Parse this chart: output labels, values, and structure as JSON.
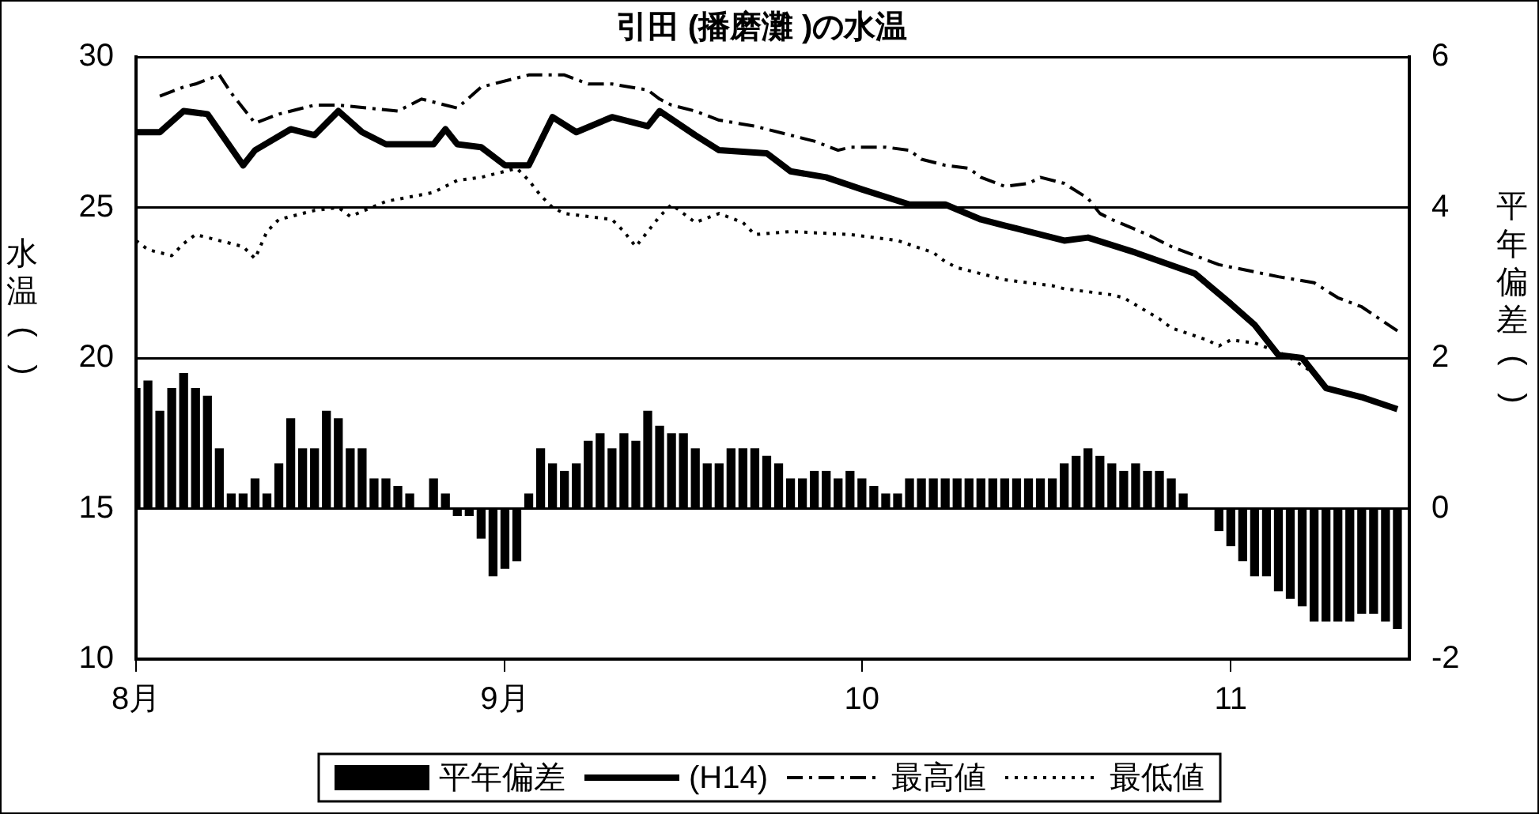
{
  "chart_data": {
    "type": "bar",
    "title": "引田 (播磨灘 )の水温",
    "ylabel": "水温()",
    "y2label": "平年偏差()",
    "x": [
      "--08-01",
      "--08-02",
      "--08-03",
      "--08-04",
      "--08-05",
      "--08-06",
      "--08-07",
      "--08-08",
      "--08-09",
      "--08-10",
      "--08-11",
      "--08-12",
      "--08-13",
      "--08-14",
      "--08-15",
      "--08-16",
      "--08-17",
      "--08-18",
      "--08-19",
      "--08-20",
      "--08-21",
      "--08-22",
      "--08-23",
      "--08-24",
      "--08-25",
      "--08-26",
      "--08-27",
      "--08-28",
      "--08-29",
      "--08-30",
      "--08-31",
      "--09-01",
      "--09-02",
      "--09-03",
      "--09-04",
      "--09-05",
      "--09-06",
      "--09-07",
      "--09-08",
      "--09-09",
      "--09-10",
      "--09-11",
      "--09-12",
      "--09-13",
      "--09-14",
      "--09-15",
      "--09-16",
      "--09-17",
      "--09-18",
      "--09-19",
      "--09-20",
      "--09-21",
      "--09-22",
      "--09-23",
      "--09-24",
      "--09-25",
      "--09-26",
      "--09-27",
      "--09-28",
      "--09-29",
      "--09-30",
      "--10-01",
      "--10-02",
      "--10-03",
      "--10-04",
      "--10-05",
      "--10-06",
      "--10-07",
      "--10-08",
      "--10-09",
      "--10-10",
      "--10-11",
      "--10-12",
      "--10-13",
      "--10-14",
      "--10-15",
      "--10-16",
      "--10-17",
      "--10-18",
      "--10-19",
      "--10-20",
      "--10-21",
      "--10-22",
      "--10-23",
      "--10-24",
      "--10-25",
      "--10-26",
      "--10-27",
      "--10-28",
      "--10-29",
      "--10-30",
      "--10-31",
      "--11-01",
      "--11-02",
      "--11-03",
      "--11-04",
      "--11-05",
      "--11-06",
      "--11-07",
      "--11-08",
      "--11-09",
      "--11-10",
      "--11-11",
      "--11-12",
      "--11-13",
      "--11-14",
      "--11-15"
    ],
    "series": [
      {
        "name": "平年偏差",
        "axis": "y2",
        "color": "#000000",
        "values": [
          1.6,
          1.7,
          1.3,
          1.6,
          1.8,
          1.6,
          1.5,
          0.8,
          0.2,
          0.2,
          0.4,
          0.2,
          0.6,
          1.2,
          0.8,
          0.8,
          1.3,
          1.2,
          0.8,
          0.8,
          0.4,
          0.4,
          0.3,
          0.2,
          0,
          0.4,
          0.2,
          -0.1,
          -0.1,
          -0.4,
          -0.9,
          -0.8,
          -0.7,
          0.2,
          0.8,
          0.6,
          0.5,
          0.6,
          0.9,
          1.0,
          0.8,
          1.0,
          0.9,
          1.3,
          1.1,
          1.0,
          1.0,
          0.8,
          0.6,
          0.6,
          0.8,
          0.8,
          0.8,
          0.7,
          0.6,
          0.4,
          0.4,
          0.5,
          0.5,
          0.4,
          0.5,
          0.4,
          0.3,
          0.2,
          0.2,
          0.4,
          0.4,
          0.4,
          0.4,
          0.4,
          0.4,
          0.4,
          0.4,
          0.4,
          0.4,
          0.4,
          0.4,
          0.4,
          0.6,
          0.7,
          0.8,
          0.7,
          0.6,
          0.5,
          0.6,
          0.5,
          0.5,
          0.4,
          0.2,
          0,
          0,
          -0.3,
          -0.5,
          -0.7,
          -0.9,
          -0.9,
          -1.1,
          -1.2,
          -1.3,
          -1.5,
          -1.5,
          -1.5,
          -1.5,
          -1.4,
          -1.4,
          -1.5,
          -1.6
        ]
      },
      {
        "name": "(H14)",
        "type": "line",
        "color": "#000000",
        "line_style": "solid",
        "x": [
          "--08-01",
          "--08-03",
          "--08-05",
          "--08-07",
          "--08-10",
          "--08-11",
          "--08-14",
          "--08-16",
          "--08-18",
          "--08-20",
          "--08-22",
          "--08-26",
          "--08-27",
          "--08-28",
          "--08-30",
          "--09-01",
          "--09-03",
          "--09-05",
          "--09-07",
          "--09-10",
          "--09-13",
          "--09-14",
          "--09-17",
          "--09-19",
          "--09-23",
          "--09-25",
          "--09-28",
          "--10-01",
          "--10-05",
          "--10-08",
          "--10-11",
          "--10-14",
          "--10-18",
          "--10-20",
          "--10-24",
          "--10-29",
          "--11-01",
          "--11-03",
          "--11-05",
          "--11-07",
          "--11-09",
          "--11-12",
          "--11-15"
        ],
        "values": [
          27.5,
          27.5,
          28.2,
          28.1,
          26.4,
          26.9,
          27.6,
          27.4,
          28.2,
          27.5,
          27.1,
          27.1,
          27.6,
          27.1,
          27.0,
          26.4,
          26.4,
          28.0,
          27.5,
          28.0,
          27.7,
          28.2,
          27.4,
          26.9,
          26.8,
          26.2,
          26.0,
          25.6,
          25.1,
          25.1,
          24.6,
          24.3,
          23.9,
          24.0,
          23.5,
          22.8,
          21.8,
          21.1,
          20.1,
          20.0,
          19.0,
          18.7,
          18.3
        ]
      },
      {
        "name": "最高値",
        "type": "line",
        "color": "#000000",
        "line_style": "dashed",
        "x": [
          "--08-03",
          "--08-05",
          "--08-06",
          "--08-08",
          "--08-09",
          "--08-11",
          "--08-13",
          "--08-16",
          "--08-18",
          "--08-23",
          "--08-25",
          "--08-28",
          "--08-30",
          "--09-02",
          "--09-03",
          "--09-06",
          "--09-08",
          "--09-10",
          "--09-13",
          "--09-14",
          "--09-15",
          "--09-17",
          "--09-19",
          "--09-22",
          "--09-25",
          "--09-27",
          "--09-29",
          "--09-30",
          "--10-03",
          "--10-05",
          "--10-06",
          "--10-08",
          "--10-10",
          "--10-11",
          "--10-13",
          "--10-15",
          "--10-16",
          "--10-18",
          "--10-20",
          "--10-21",
          "--10-22",
          "--10-25",
          "--10-27",
          "--10-29",
          "--10-31",
          "--11-05",
          "--11-08",
          "--11-10",
          "--11-12",
          "--11-15"
        ],
        "values": [
          28.7,
          29.0,
          29.1,
          29.4,
          28.8,
          27.8,
          28.1,
          28.4,
          28.4,
          28.2,
          28.6,
          28.3,
          29.0,
          29.3,
          29.4,
          29.4,
          29.1,
          29.1,
          28.9,
          28.6,
          28.4,
          28.2,
          27.9,
          27.7,
          27.4,
          27.2,
          26.9,
          27.0,
          27.0,
          26.9,
          26.6,
          26.4,
          26.3,
          26.0,
          25.7,
          25.8,
          26.0,
          25.8,
          25.3,
          24.8,
          24.6,
          24.1,
          23.7,
          23.4,
          23.1,
          22.7,
          22.5,
          22.0,
          21.7,
          20.9
        ]
      },
      {
        "name": "最低値",
        "type": "line",
        "color": "#000000",
        "line_style": "dotted",
        "x": [
          "--08-01",
          "--08-02",
          "--08-04",
          "--08-05",
          "--08-06",
          "--08-10",
          "--08-11",
          "--08-12",
          "--08-13",
          "--08-16",
          "--08-18",
          "--08-19",
          "--08-22",
          "--08-26",
          "--08-28",
          "--08-30",
          "--09-02",
          "--09-03",
          "--09-04",
          "--09-05",
          "--09-06",
          "--09-10",
          "--09-11",
          "--09-12",
          "--09-14",
          "--09-15",
          "--09-17",
          "--09-19",
          "--09-21",
          "--09-22",
          "--09-25",
          "--09-30",
          "--10-04",
          "--10-07",
          "--10-08",
          "--10-09",
          "--10-11",
          "--10-13",
          "--10-17",
          "--10-18",
          "--10-22",
          "--10-23",
          "--10-26",
          "--10-27",
          "--10-30",
          "--10-31",
          "--11-01",
          "--11-03",
          "--11-05",
          "--11-06",
          "--11-08"
        ],
        "values": [
          23.9,
          23.6,
          23.4,
          23.8,
          24.1,
          23.7,
          23.3,
          24.2,
          24.6,
          24.9,
          25.0,
          24.7,
          25.2,
          25.5,
          25.9,
          26.0,
          26.3,
          25.9,
          25.4,
          25.0,
          24.8,
          24.6,
          24.2,
          23.7,
          24.7,
          25.1,
          24.5,
          24.8,
          24.5,
          24.1,
          24.2,
          24.1,
          23.9,
          23.5,
          23.2,
          23.0,
          22.8,
          22.6,
          22.4,
          22.3,
          22.1,
          22.0,
          21.3,
          21.0,
          20.6,
          20.4,
          20.6,
          20.5,
          20.2,
          20.0,
          19.5
        ]
      }
    ],
    "xlim": [
      "--08-01",
      "--11-16"
    ],
    "xticks": [
      {
        "value": "--08-01",
        "label": "8月"
      },
      {
        "value": "--09-01",
        "label": "9月"
      },
      {
        "value": "--10-01",
        "label": "10"
      },
      {
        "value": "--11-01",
        "label": "11"
      }
    ],
    "ylim": [
      10,
      30
    ],
    "yticks": [
      10,
      15,
      20,
      25,
      30
    ],
    "y2lim": [
      -2,
      6
    ],
    "y2ticks": [
      -2,
      0,
      2,
      4,
      6
    ],
    "grid": "y",
    "legend": "bottom"
  }
}
